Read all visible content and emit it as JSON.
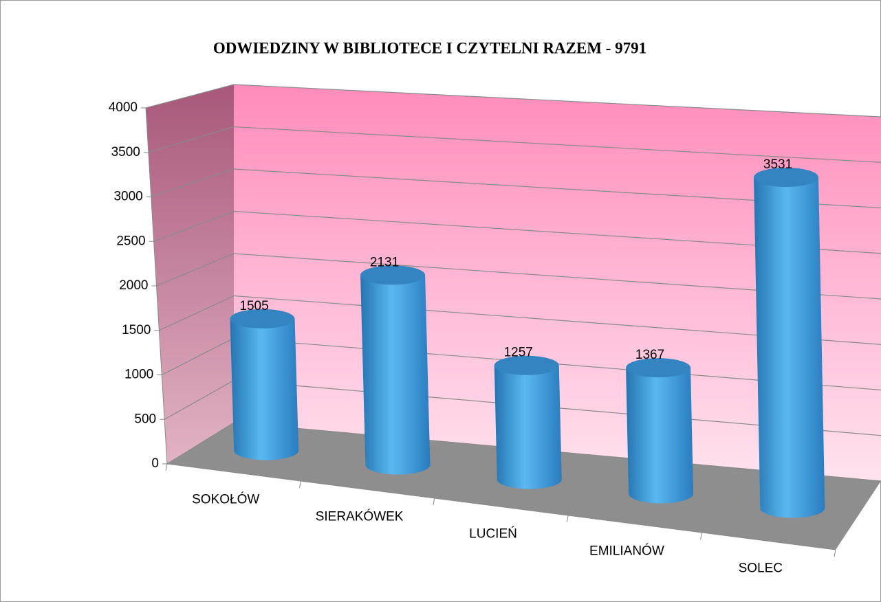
{
  "chart_data": {
    "type": "bar3d",
    "title": "ODWIEDZINY W BIBLIOTECE I CZYTELNI RAZEM - 9791",
    "categories": [
      "SOKOŁÓW",
      "SIERAKÓWEK",
      "LUCIEŃ",
      "EMILIANÓW",
      "SOLEC"
    ],
    "values": [
      1505,
      2131,
      1257,
      1367,
      3531
    ],
    "color": "#3fa0e0",
    "ylim": [
      0,
      4000
    ],
    "yticks": [
      0,
      500,
      1000,
      1500,
      2000,
      2500,
      3000,
      3500,
      4000
    ],
    "grid": true
  }
}
